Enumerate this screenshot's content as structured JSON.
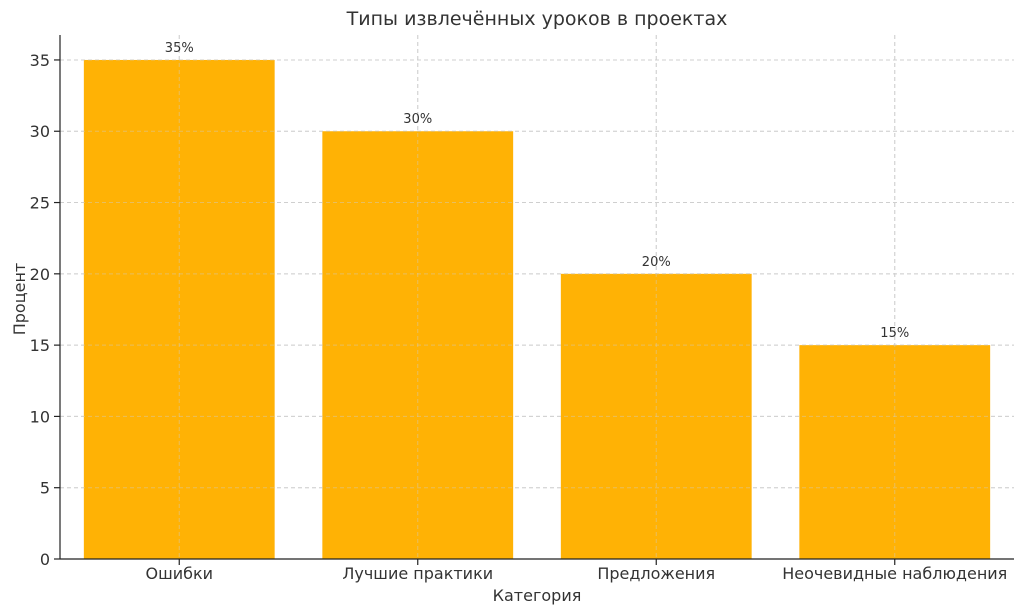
{
  "chart_data": {
    "type": "bar",
    "title": "Типы извлечённых уроков в проектах",
    "xlabel": "Категория",
    "ylabel": "Процент",
    "categories": [
      "Ошибки",
      "Лучшие практики",
      "Предложения",
      "Неочевидные наблюдения"
    ],
    "values": [
      35,
      30,
      20,
      15
    ],
    "data_labels": [
      "35%",
      "30%",
      "20%",
      "15%"
    ],
    "ylim": [
      0,
      36.75
    ],
    "yticks": [
      0,
      5,
      10,
      15,
      20,
      25,
      30,
      35
    ],
    "grid": true,
    "bar_color": "#FFB000"
  }
}
